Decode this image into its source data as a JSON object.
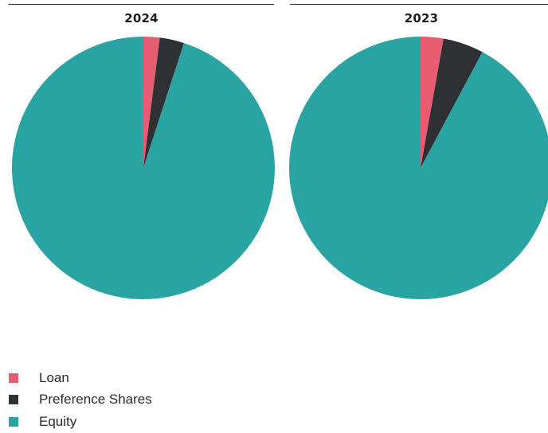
{
  "chart_data": {
    "type": "pie",
    "charts": [
      {
        "title": "2024",
        "slices": [
          {
            "label": "Loan",
            "value": 2.0
          },
          {
            "label": "Preference Shares",
            "value": 3.0
          },
          {
            "label": "Equity",
            "value": 95.0
          }
        ]
      },
      {
        "title": "2023",
        "slices": [
          {
            "label": "Loan",
            "value": 2.8
          },
          {
            "label": "Preference Shares",
            "value": 5.0
          },
          {
            "label": "Equity",
            "value": 92.2
          }
        ]
      }
    ],
    "legend": {
      "position": "bottom-left",
      "items": [
        {
          "label": "Loan",
          "color": "#e85c72"
        },
        {
          "label": "Preference Shares",
          "color": "#2e3033"
        },
        {
          "label": "Equity",
          "color": "#2aa4a2"
        }
      ]
    },
    "start_angle": "12 o'clock",
    "direction": "clockwise"
  }
}
